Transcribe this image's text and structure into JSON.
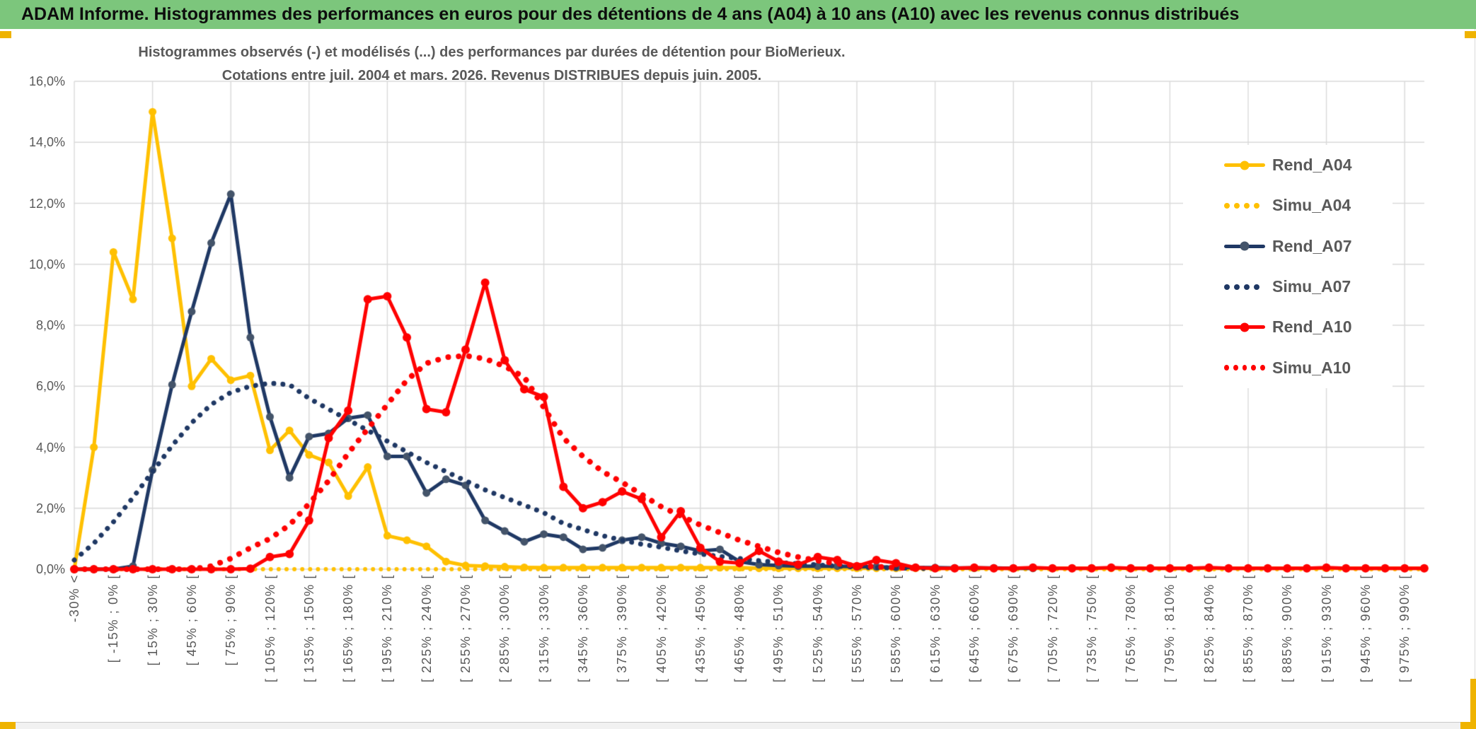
{
  "header": {
    "title": "ADAM Informe. Histogrammes des performances en euros pour des détentions de 4 ans (A04) à 10 ans (A10) avec les revenus connus distribués"
  },
  "colors": {
    "header_green": "#7CC67C",
    "selection_gold": "#EFB300",
    "grid_gray": "#D9D9D9",
    "text_gray": "#595959",
    "series_gold": "#FFC000",
    "series_navy": "#1F3864",
    "series_navy_marker": "#44546A",
    "series_red": "#FF0000"
  },
  "chart_data": {
    "type": "line",
    "title_line1": "Histogrammes observés (-) et modélisés (...) des performances par durées de détention pour BioMerieux.",
    "title_line2": "Cotations entre juil. 2004 et mars. 2026. Revenus DISTRIBUES depuis juin. 2005.",
    "ylabel": "",
    "xlabel": "",
    "ylim": [
      0,
      16
    ],
    "y_tick_step_pct": 2,
    "grid": true,
    "legend_position": "right",
    "y_tick_labels": [
      "16,0%",
      "14,0%",
      "12,0%",
      "10,0%",
      "8,0%",
      "6,0%",
      "4,0%",
      "2,0%",
      "0,0%"
    ],
    "x_tick_labels": [
      "-30% <",
      "[ -15% ; 0% [",
      "[ 15% ; 30% [",
      "[ 45% ; 60% [",
      "[ 75% ; 90% [",
      "[ 105% ; 120% [",
      "[ 135% ; 150% [",
      "[ 165% ; 180% [",
      "[ 195% ; 210% [",
      "[ 225% ; 240% [",
      "[ 255% ; 270% [",
      "[ 285% ; 300% [",
      "[ 315% ; 330% [",
      "[ 345% ; 360% [",
      "[ 375% ; 390% [",
      "[ 405% ; 420% [",
      "[ 435% ; 450% [",
      "[ 465% ; 480% [",
      "[ 495% ; 510% [",
      "[ 525% ; 540% [",
      "[ 555% ; 570% [",
      "[ 585% ; 600% [",
      "[ 615% ; 630% [",
      "[ 645% ; 660% [",
      "[ 675% ; 690% [",
      "[ 705% ; 720% [",
      "[ 735% ; 750% [",
      "[ 765% ; 780% [",
      "[ 795% ; 810% [",
      "[ 825% ; 840% [",
      "[ 855% ; 870% [",
      "[ 885% ; 900% [",
      "[ 915% ; 930% [",
      "[ 945% ; 960% [",
      "[ 975% ; 990% ["
    ],
    "bins_per_label": 2,
    "num_bins": 70,
    "bin_width_pct": 15,
    "series": [
      {
        "name": "Rend_A04",
        "style": "solid",
        "color": "#FFC000",
        "marker_color": "#FFC000",
        "values": [
          0,
          4,
          10.4,
          8.85,
          15,
          10.85,
          6,
          6.9,
          6.2,
          6.35,
          3.9,
          4.55,
          3.75,
          3.5,
          2.4,
          3.35,
          1.1,
          0.95,
          0.75,
          0.25,
          0.12,
          0.1,
          0.08,
          0.06,
          0.05,
          0.05,
          0.05,
          0.05,
          0.05,
          0.05,
          0.05,
          0.05,
          0.05,
          0.05,
          0.05,
          0.03,
          0.03,
          0.03,
          0.03,
          0.03,
          0.03,
          0.03,
          0.03,
          0.03,
          0.03,
          0.03,
          0.03,
          0.03,
          0.03,
          0.03,
          0.03,
          0.03,
          0.03,
          0.03,
          0.03,
          0.03,
          0.03,
          0.03,
          0.03,
          0.03,
          0.03,
          0.03,
          0.03,
          0.03,
          0.03,
          0.03,
          0.03,
          0.03,
          0.03,
          0.03
        ]
      },
      {
        "name": "Simu_A04",
        "style": "dotted",
        "color": "#FFC000",
        "values": [
          0,
          0,
          0,
          0,
          0,
          0,
          0,
          0,
          0,
          0,
          0,
          0,
          0,
          0,
          0,
          0,
          0,
          0,
          0,
          0,
          0,
          0,
          0,
          0,
          0,
          0,
          0,
          0,
          0,
          0,
          0,
          0,
          0,
          0,
          0,
          0,
          0,
          0,
          0,
          0,
          0,
          0,
          0,
          0,
          0,
          0,
          0,
          0,
          0,
          0,
          0,
          0,
          0,
          0,
          0,
          0,
          0,
          0,
          0,
          0,
          0,
          0,
          0,
          0,
          0,
          0,
          0,
          0,
          0,
          0
        ]
      },
      {
        "name": "Rend_A07",
        "style": "solid",
        "color": "#1F3864",
        "marker_color": "#44546A",
        "values": [
          0,
          0,
          0,
          0.1,
          3.25,
          6.05,
          8.45,
          10.7,
          12.3,
          7.6,
          5,
          3,
          4.35,
          4.45,
          4.95,
          5.05,
          3.7,
          3.7,
          2.5,
          2.95,
          2.75,
          1.6,
          1.25,
          0.9,
          1.15,
          1.05,
          0.65,
          0.7,
          0.95,
          1.05,
          0.85,
          0.75,
          0.6,
          0.65,
          0.25,
          0.15,
          0.12,
          0.1,
          0.1,
          0.1,
          0.08,
          0.08,
          0.06,
          0.05,
          0.05,
          0.04,
          0.04,
          0.04,
          0.03,
          0.03,
          null,
          null,
          null,
          null,
          null,
          null,
          null,
          null,
          null,
          null,
          null,
          null,
          null,
          null,
          null,
          null,
          null,
          null,
          null,
          null
        ]
      },
      {
        "name": "Simu_A07",
        "style": "dotted",
        "color": "#1F3864",
        "values": [
          0.3,
          0.85,
          1.55,
          2.35,
          3.2,
          4.05,
          4.8,
          5.4,
          5.8,
          6,
          6.1,
          6.05,
          5.6,
          5.25,
          4.9,
          4.55,
          4.2,
          3.85,
          3.5,
          3.2,
          2.9,
          2.6,
          2.35,
          2.1,
          1.85,
          1.5,
          1.3,
          1.1,
          0.95,
          0.82,
          0.72,
          0.6,
          0.5,
          0.42,
          0.35,
          0.28,
          0.22,
          0.18,
          0.14,
          0.1,
          0.07,
          0.05,
          0.04,
          0.03,
          0.02,
          null,
          null,
          null,
          null,
          null,
          null,
          null,
          null,
          null,
          null,
          null,
          null,
          null,
          null,
          null,
          null,
          null,
          null,
          null,
          null,
          null,
          null,
          null,
          null,
          null
        ]
      },
      {
        "name": "Rend_A10",
        "style": "solid",
        "color": "#FF0000",
        "marker_color": "#FF0000",
        "values": [
          0,
          0,
          0,
          0,
          0,
          0,
          0,
          0,
          0,
          0.02,
          0.4,
          0.5,
          1.6,
          4.3,
          5.2,
          8.85,
          8.95,
          7.6,
          5.25,
          5.15,
          7.2,
          9.4,
          6.85,
          5.9,
          5.65,
          2.7,
          2,
          2.2,
          2.55,
          2.3,
          1.05,
          1.9,
          0.7,
          0.25,
          0.2,
          0.6,
          0.25,
          0.15,
          0.4,
          0.3,
          0.1,
          0.3,
          0.2,
          0.05,
          0.03,
          0.03,
          0.05,
          0.03,
          0.03,
          0.05,
          0.03,
          0.03,
          0.03,
          0.05,
          0.03,
          0.03,
          0.03,
          0.03,
          0.05,
          0.03,
          0.03,
          0.03,
          0.03,
          0.03,
          0.05,
          0.03,
          0.03,
          0.03,
          0.03,
          0.03
        ]
      },
      {
        "name": "Simu_A10",
        "style": "dotted",
        "color": "#FF0000",
        "values": [
          0,
          0,
          0,
          0,
          0,
          0,
          0,
          0.1,
          0.35,
          0.7,
          1,
          1.45,
          2.15,
          2.9,
          3.8,
          4.6,
          5.4,
          6.2,
          6.75,
          6.95,
          7,
          6.9,
          6.65,
          6.3,
          5.3,
          4.3,
          3.7,
          3.2,
          2.85,
          2.45,
          2.05,
          1.75,
          1.45,
          1.2,
          0.95,
          0.75,
          0.55,
          0.4,
          0.28,
          0.18,
          0.12,
          0.08,
          0.05,
          0.03,
          null,
          null,
          null,
          null,
          null,
          null,
          null,
          null,
          null,
          null,
          null,
          null,
          null,
          null,
          null,
          null,
          null,
          null,
          null,
          null,
          null,
          null,
          null,
          null,
          null,
          null
        ]
      }
    ]
  }
}
